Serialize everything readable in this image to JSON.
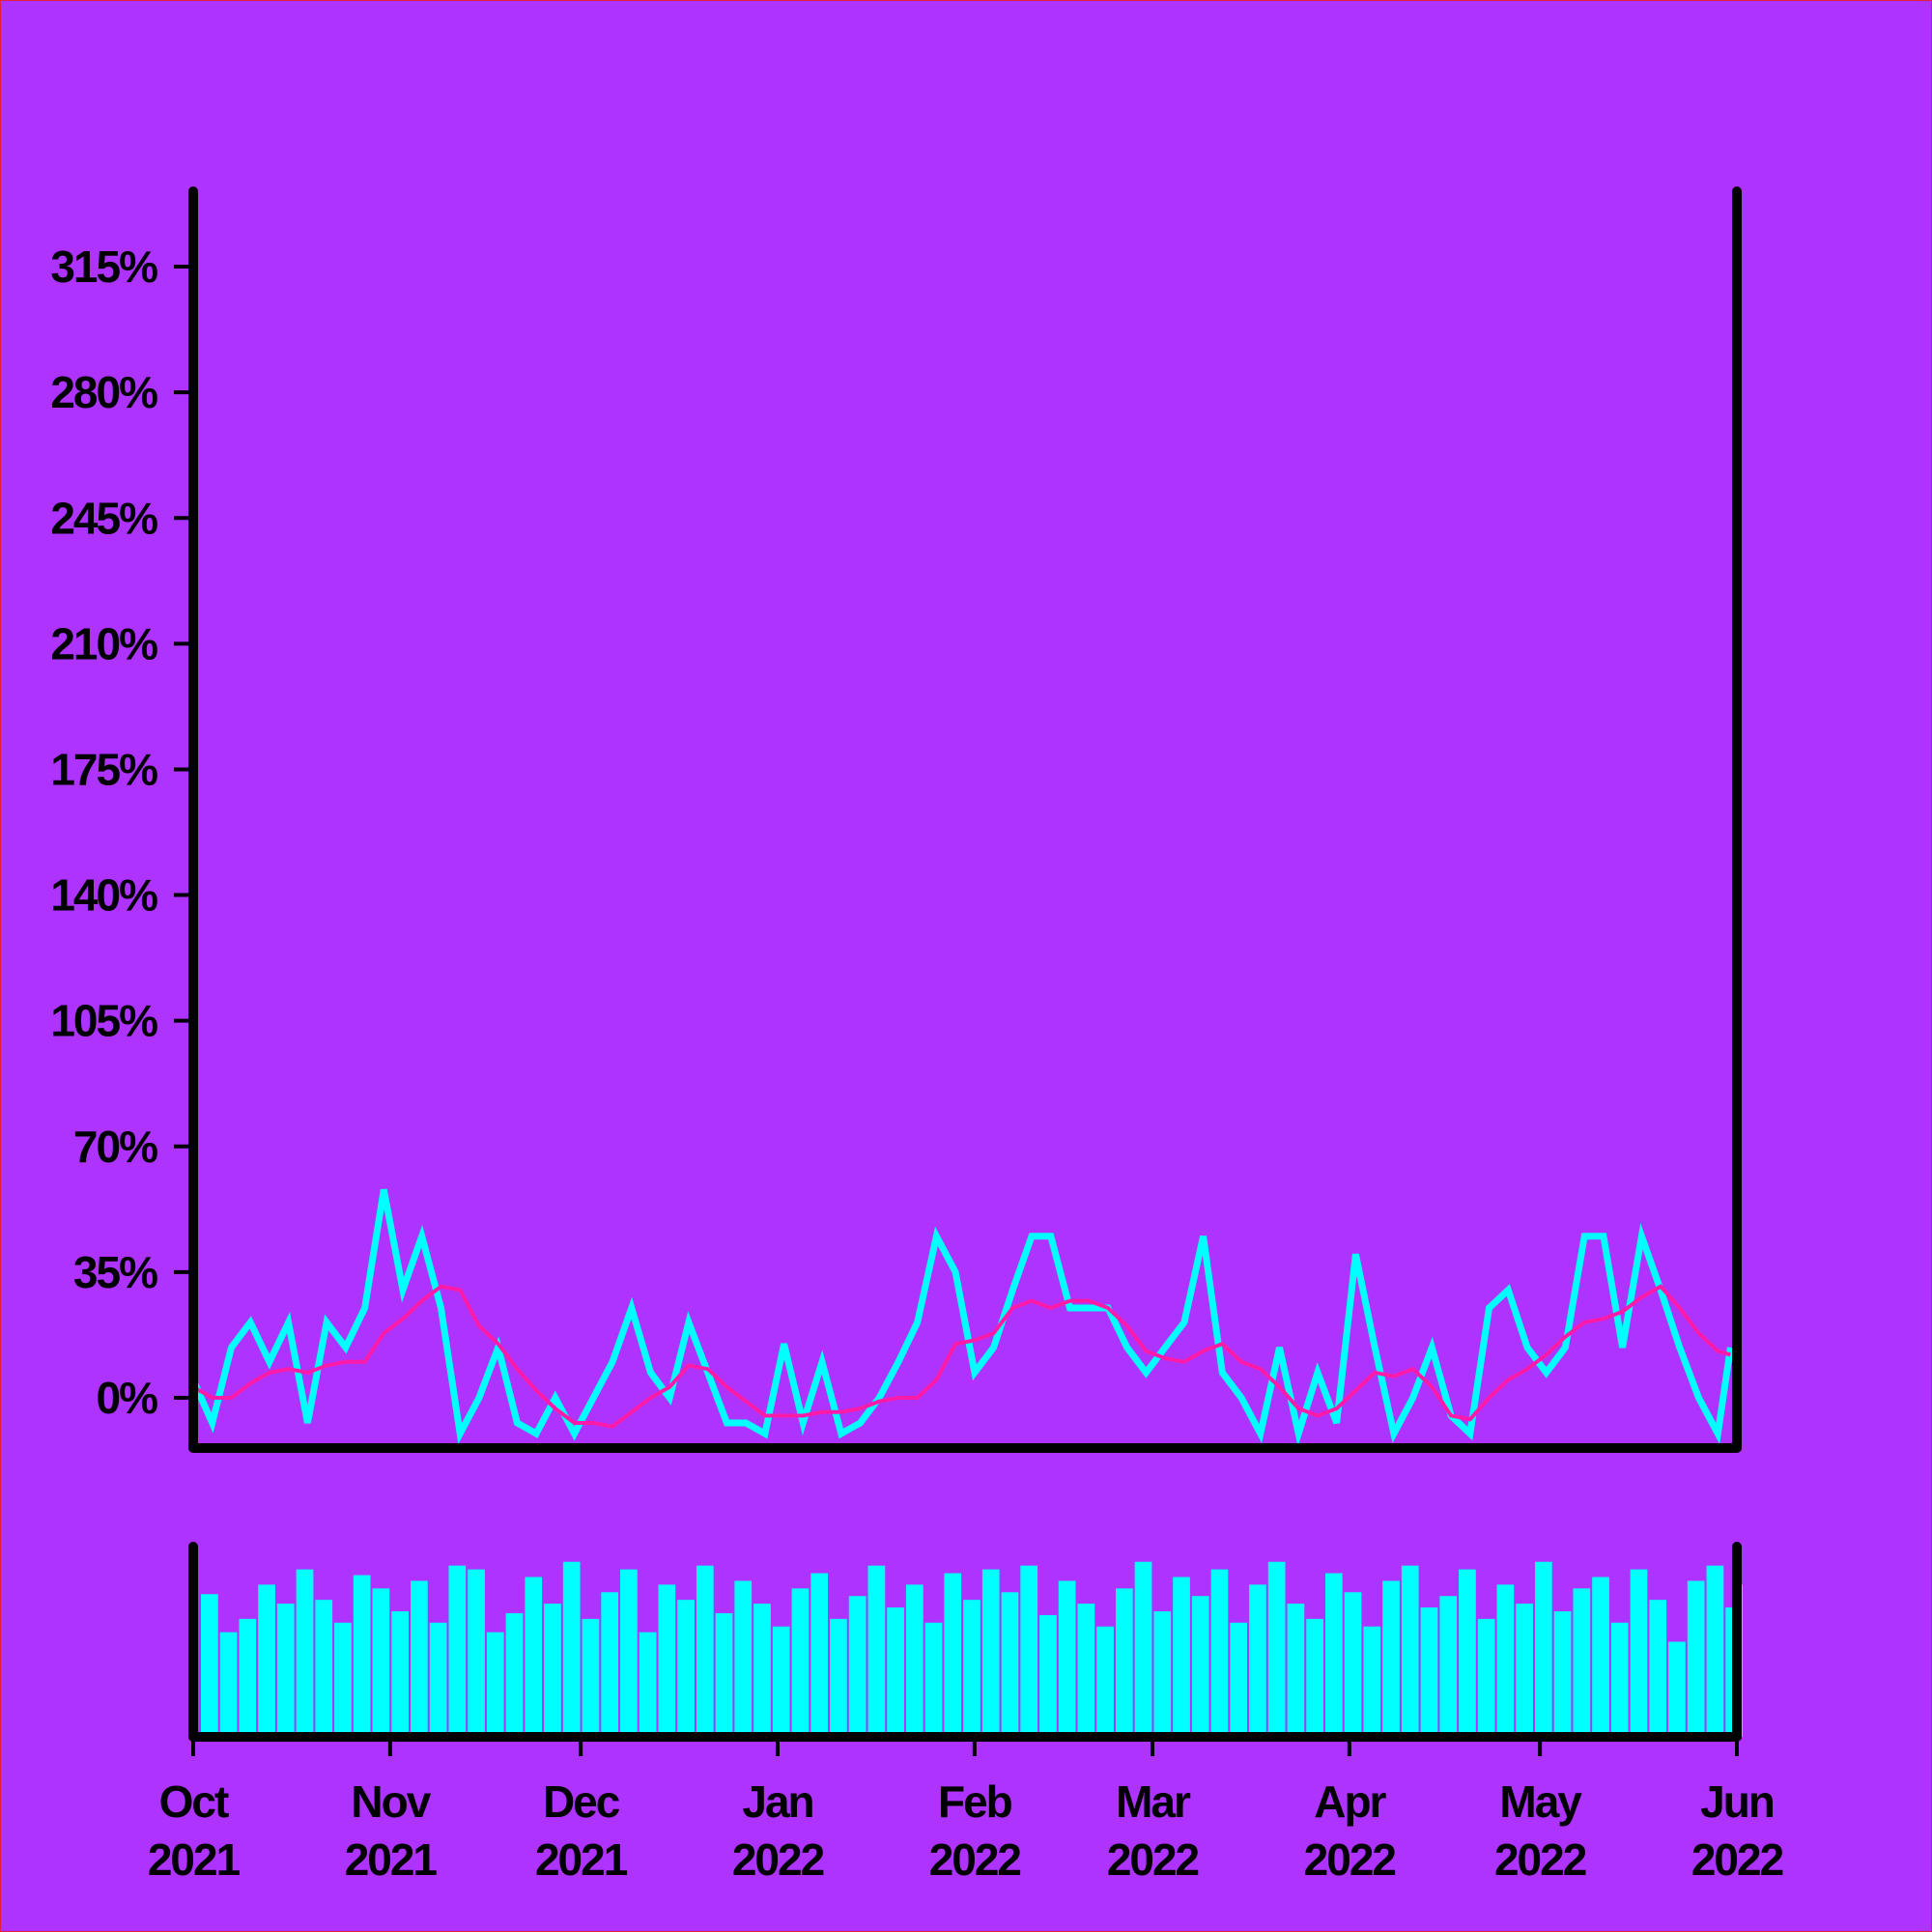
{
  "chart_data": [
    {
      "type": "line",
      "x": [
        0,
        3,
        6,
        9,
        12,
        15,
        18,
        21,
        24,
        27,
        30,
        33,
        36,
        39,
        42,
        45,
        48,
        51,
        54,
        57,
        60,
        63,
        66,
        69,
        72,
        75,
        78,
        81,
        84,
        87,
        90,
        93,
        96,
        99,
        102,
        105,
        108,
        111,
        114,
        117,
        120,
        123,
        126,
        129,
        132,
        135,
        138,
        141,
        144,
        147,
        150,
        153,
        156,
        159,
        162,
        165,
        168,
        171,
        174,
        177,
        180,
        183,
        186,
        189,
        192,
        195,
        198,
        201,
        204,
        207,
        210,
        213,
        216,
        219,
        222,
        225,
        228,
        231,
        234,
        237,
        240,
        242
      ],
      "xlim": [
        0,
        243
      ],
      "series": [
        {
          "color": "#00ffff",
          "values": [
            5,
            -7,
            14,
            21,
            10,
            21,
            -7,
            21,
            14,
            25,
            58,
            30,
            45,
            25,
            -10,
            0,
            14,
            -7,
            -10,
            0,
            -10,
            0,
            10,
            25,
            7,
            0,
            21,
            7,
            -7,
            -7,
            -10,
            15,
            -7,
            10,
            -10,
            -7,
            0,
            10,
            21,
            45,
            35,
            7,
            14,
            30,
            45,
            45,
            25,
            25,
            25,
            14,
            7,
            14,
            21,
            45,
            7,
            0,
            -10,
            14,
            -10,
            7,
            -7,
            40,
            14,
            -10,
            0,
            14,
            -5,
            -10,
            25,
            30,
            14,
            7,
            14,
            45,
            45,
            14,
            45,
            30,
            14,
            0,
            -10,
            14
          ]
        },
        {
          "color": "#ff1aa8",
          "values": [
            3,
            0,
            0,
            4,
            7,
            8,
            7,
            9,
            10,
            10,
            18,
            22,
            27,
            31,
            30,
            20,
            15,
            8,
            2,
            -3,
            -7,
            -7,
            -8,
            -4,
            0,
            3,
            9,
            8,
            3,
            -1,
            -5,
            -5,
            -5,
            -4,
            -4,
            -3,
            -1,
            0,
            0,
            5,
            15,
            16,
            18,
            25,
            27,
            25,
            27,
            27,
            25,
            20,
            13,
            11,
            10,
            13,
            15,
            10,
            8,
            3,
            -3,
            -5,
            -3,
            2,
            7,
            6,
            8,
            3,
            -5,
            -6,
            0,
            5,
            8,
            12,
            17,
            21,
            22,
            24,
            28,
            31,
            25,
            18,
            13,
            12
          ]
        }
      ],
      "ylim": [
        -14,
        336
      ],
      "yticks": [
        {
          "value": 0,
          "label": "0%"
        },
        {
          "value": 35,
          "label": "35%"
        },
        {
          "value": 70,
          "label": "70%"
        },
        {
          "value": 105,
          "label": "105%"
        },
        {
          "value": 140,
          "label": "140%"
        },
        {
          "value": 175,
          "label": "175%"
        },
        {
          "value": 210,
          "label": "210%"
        },
        {
          "value": 245,
          "label": "245%"
        },
        {
          "value": 280,
          "label": "280%"
        },
        {
          "value": 315,
          "label": "315%"
        }
      ]
    },
    {
      "type": "bar",
      "x": [
        0,
        3,
        6,
        9,
        12,
        15,
        18,
        21,
        24,
        27,
        30,
        33,
        36,
        39,
        42,
        45,
        48,
        51,
        54,
        57,
        60,
        63,
        66,
        69,
        72,
        75,
        78,
        81,
        84,
        87,
        90,
        93,
        96,
        99,
        102,
        105,
        108,
        111,
        114,
        117,
        120,
        123,
        126,
        129,
        132,
        135,
        138,
        141,
        144,
        147,
        150,
        153,
        156,
        159,
        162,
        165,
        168,
        171,
        174,
        177,
        180,
        183,
        186,
        189,
        192,
        195,
        198,
        201,
        204,
        207,
        210,
        213,
        216,
        219,
        222,
        225,
        228,
        231,
        234,
        237,
        240,
        242
      ],
      "values": [
        75,
        55,
        62,
        80,
        70,
        88,
        72,
        60,
        85,
        78,
        66,
        82,
        60,
        90,
        88,
        55,
        65,
        84,
        70,
        92,
        62,
        76,
        88,
        55,
        80,
        72,
        90,
        65,
        82,
        70,
        58,
        78,
        86,
        62,
        74,
        90,
        68,
        80,
        60,
        86,
        72,
        88,
        76,
        90,
        64,
        82,
        70,
        58,
        78,
        92,
        66,
        84,
        74,
        88,
        60,
        80,
        92,
        70,
        62,
        86,
        76,
        58,
        82,
        90,
        68,
        74,
        88,
        62,
        80,
        70,
        92,
        66,
        78,
        84,
        60,
        88,
        72,
        50,
        82,
        90,
        68,
        80
      ],
      "color": "#00ffff",
      "ylim": [
        0,
        100
      ],
      "xlim": [
        0,
        243
      ],
      "xticks": [
        {
          "value": 0,
          "label": [
            "Oct",
            "2021"
          ]
        },
        {
          "value": 31,
          "label": [
            "Nov",
            "2021"
          ]
        },
        {
          "value": 61,
          "label": [
            "Dec",
            "2021"
          ]
        },
        {
          "value": 92,
          "label": [
            "Jan",
            "2022"
          ]
        },
        {
          "value": 123,
          "label": [
            "Feb",
            "2022"
          ]
        },
        {
          "value": 151,
          "label": [
            "Mar",
            "2022"
          ]
        },
        {
          "value": 182,
          "label": [
            "Apr",
            "2022"
          ]
        },
        {
          "value": 212,
          "label": [
            "May",
            "2022"
          ]
        },
        {
          "value": 243,
          "label": [
            "Jun",
            "2022"
          ]
        }
      ]
    }
  ]
}
